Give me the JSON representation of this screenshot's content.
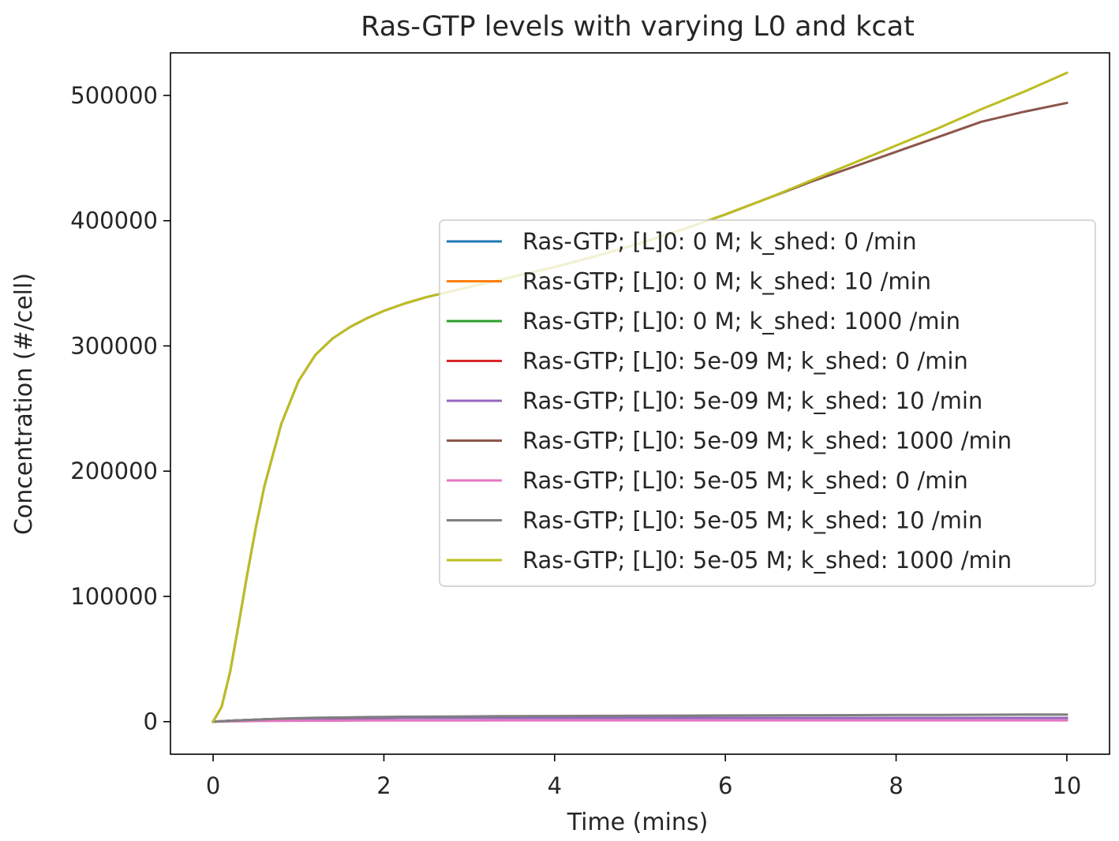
{
  "chart_data": {
    "type": "line",
    "title": "Ras-GTP levels with varying L0 and kcat",
    "xlabel": "Time (mins)",
    "ylabel": "Concentration (#/cell)",
    "xlim": [
      -0.5,
      10.5
    ],
    "ylim": [
      -26000,
      534000
    ],
    "xticks": [
      0,
      2,
      4,
      6,
      8,
      10
    ],
    "xtick_labels": [
      "0",
      "2",
      "4",
      "6",
      "8",
      "10"
    ],
    "yticks": [
      0,
      100000,
      200000,
      300000,
      400000,
      500000
    ],
    "ytick_labels": [
      "0",
      "100000",
      "200000",
      "300000",
      "400000",
      "500000"
    ],
    "grid": false,
    "legend_position": "center-right",
    "x": [
      0,
      0.1,
      0.2,
      0.3,
      0.4,
      0.5,
      0.6,
      0.8,
      1.0,
      1.2,
      1.4,
      1.6,
      1.8,
      2.0,
      2.25,
      2.5,
      3.0,
      3.5,
      4.0,
      4.5,
      5.0,
      5.5,
      6.0,
      6.5,
      7.0,
      7.5,
      8.0,
      8.5,
      9.0,
      9.5,
      10.0
    ],
    "series": [
      {
        "name": "Ras-GTP; [L]0: 0 M; k_shed: 0 /min",
        "color": "#1f77b4",
        "values": [
          0,
          300,
          700,
          1000,
          1300,
          1600,
          1800,
          2100,
          2400,
          2600,
          2700,
          2800,
          2850,
          2900,
          2950,
          3000,
          3000,
          3000,
          3000,
          3000,
          3000,
          3000,
          3000,
          3000,
          3000,
          3000,
          3000,
          3000,
          3000,
          3000,
          3000
        ]
      },
      {
        "name": "Ras-GTP; [L]0: 0 M; k_shed: 10 /min",
        "color": "#ff7f0e",
        "values": [
          0,
          300,
          700,
          1000,
          1300,
          1600,
          1800,
          2100,
          2400,
          2600,
          2700,
          2800,
          2850,
          2900,
          2950,
          3000,
          3000,
          3000,
          3000,
          3000,
          3000,
          3000,
          3000,
          3000,
          3000,
          3000,
          3000,
          3000,
          3000,
          3000,
          3000
        ]
      },
      {
        "name": "Ras-GTP; [L]0: 0 M; k_shed: 1000 /min",
        "color": "#2ca02c",
        "values": [
          0,
          300,
          700,
          1000,
          1300,
          1600,
          1800,
          2100,
          2400,
          2600,
          2700,
          2800,
          2850,
          2900,
          2950,
          3000,
          3000,
          3000,
          3000,
          3000,
          3000,
          3000,
          3000,
          3000,
          3000,
          3000,
          3000,
          3000,
          3000,
          3000,
          3000
        ]
      },
      {
        "name": "Ras-GTP; [L]0: 5e-09 M; k_shed: 0 /min",
        "color": "#d62728",
        "values": [
          0,
          300,
          700,
          1000,
          1300,
          1600,
          1800,
          2100,
          2400,
          2600,
          2700,
          2800,
          2850,
          2900,
          2950,
          3000,
          3000,
          3000,
          3000,
          3000,
          3000,
          3000,
          3000,
          3000,
          3000,
          3000,
          3000,
          3000,
          3000,
          3000,
          3000
        ]
      },
      {
        "name": "Ras-GTP; [L]0: 5e-09 M; k_shed: 10 /min",
        "color": "#9467bd",
        "values": [
          0,
          300,
          700,
          1000,
          1300,
          1600,
          1800,
          2100,
          2400,
          2600,
          2700,
          2800,
          2850,
          2900,
          2950,
          3000,
          3000,
          3000,
          3000,
          3000,
          3000,
          3000,
          3000,
          3000,
          3000,
          3000,
          3000,
          3000,
          3000,
          3000,
          3000
        ]
      },
      {
        "name": "Ras-GTP; [L]0: 5e-09 M; k_shed: 1000 /min",
        "color": "#8c564b",
        "values": [
          0,
          12000,
          40000,
          78000,
          118000,
          155000,
          188000,
          238000,
          272000,
          293000,
          306000,
          315000,
          322000,
          328000,
          334000,
          339000,
          347000,
          355000,
          363000,
          372000,
          382000,
          393000,
          405000,
          418000,
          431000,
          443000,
          455000,
          467000,
          479000,
          487000,
          494000
        ]
      },
      {
        "name": "Ras-GTP; [L]0: 5e-05 M; k_shed: 0 /min",
        "color": "#e377c2",
        "values": [
          0,
          100,
          200,
          300,
          400,
          500,
          550,
          650,
          700,
          750,
          800,
          850,
          880,
          900,
          920,
          950,
          980,
          1000,
          1000,
          1000,
          1000,
          1000,
          1000,
          1000,
          1000,
          1000,
          1000,
          1000,
          1000,
          1000,
          1000
        ]
      },
      {
        "name": "Ras-GTP; [L]0: 5e-05 M; k_shed: 10 /min",
        "color": "#7f7f7f",
        "values": [
          0,
          300,
          700,
          1000,
          1300,
          1600,
          1900,
          2400,
          2800,
          3100,
          3300,
          3500,
          3650,
          3800,
          3900,
          4000,
          4200,
          4400,
          4500,
          4600,
          4700,
          4800,
          4900,
          5000,
          5100,
          5200,
          5300,
          5400,
          5500,
          5600,
          5700
        ]
      },
      {
        "name": "Ras-GTP; [L]0: 5e-05 M; k_shed: 1000 /min",
        "color": "#bcbd22",
        "values": [
          0,
          12000,
          40000,
          78000,
          118000,
          155000,
          188000,
          238000,
          272000,
          293000,
          306000,
          315000,
          322000,
          328000,
          334000,
          339000,
          347000,
          355000,
          363000,
          372000,
          382000,
          393000,
          405000,
          418000,
          432000,
          446000,
          460000,
          474000,
          489000,
          503000,
          518000
        ]
      }
    ]
  }
}
